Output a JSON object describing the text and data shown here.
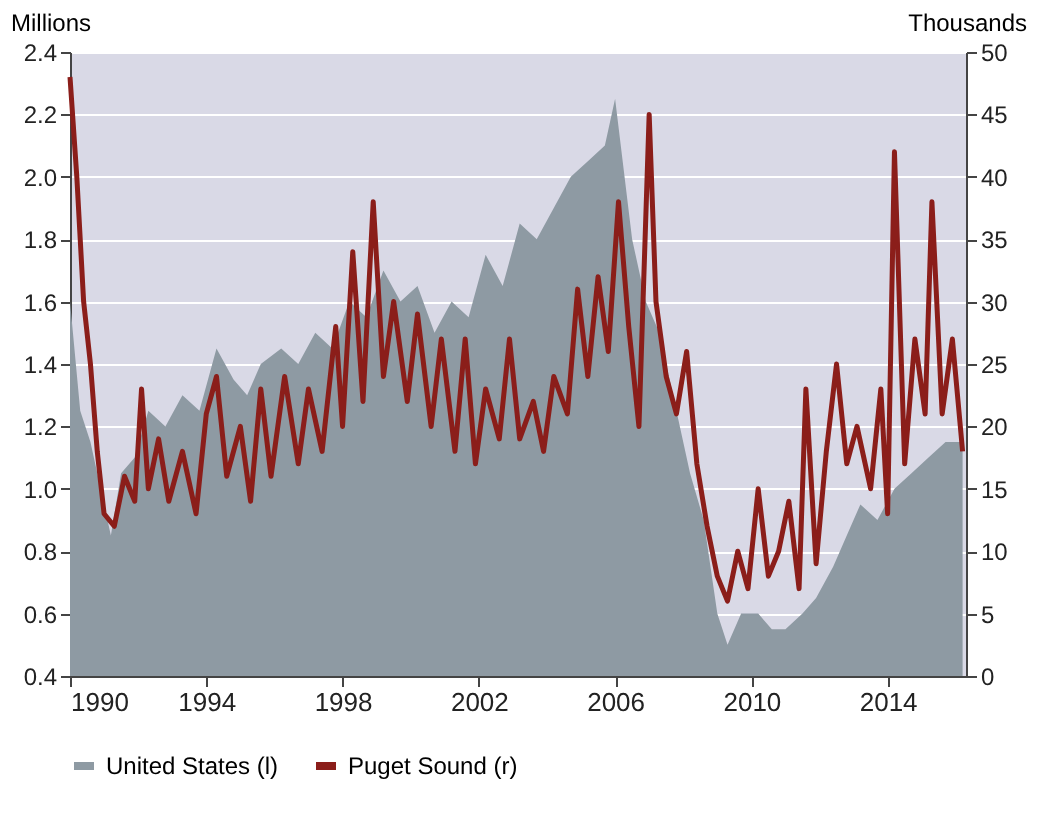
{
  "chart_data": {
    "type": "area",
    "ylabel": "Millions",
    "y2label": "Thousands",
    "xlim": [
      1990,
      2016.3
    ],
    "xticks": [
      1990,
      1994,
      1998,
      2002,
      2006,
      2010,
      2014
    ],
    "ylim": [
      0.4,
      2.4
    ],
    "yticks": [
      0.4,
      0.6,
      0.8,
      {
        "value": 1,
        "label": "1.0"
      },
      1.2,
      1.4,
      1.6,
      1.8,
      {
        "value": 2,
        "label": "2.0"
      },
      2.2,
      2.4
    ],
    "y2lim": [
      0,
      50
    ],
    "y2ticks": [
      0,
      5,
      10,
      15,
      20,
      25,
      30,
      35,
      40,
      45,
      50
    ],
    "grid": "y",
    "legend": "bottom",
    "series": [
      {
        "name": "United States (l)",
        "color": "#8e9aa3",
        "x": [
          1990.0,
          1990.3,
          1990.6,
          1990.9,
          1991.2,
          1991.5,
          1991.9,
          1992.3,
          1992.8,
          1993.3,
          1993.8,
          1994.3,
          1994.8,
          1995.2,
          1995.6,
          1996.2,
          1996.7,
          1997.2,
          1997.7,
          1998.2,
          1998.7,
          1999.2,
          1999.7,
          2000.2,
          2000.7,
          2001.2,
          2001.7,
          2002.2,
          2002.7,
          2003.2,
          2003.7,
          2004.2,
          2004.7,
          2005.2,
          2005.7,
          2006.0,
          2006.5,
          2006.9,
          2007.3,
          2007.7,
          2008.2,
          2008.6,
          2009.0,
          2009.3,
          2009.7,
          2010.2,
          2010.6,
          2011.0,
          2011.5,
          2011.9,
          2012.4,
          2012.8,
          2013.2,
          2013.7,
          2014.2,
          2014.7,
          2015.2,
          2015.7,
          2016.2
        ],
        "values": [
          1.6,
          1.25,
          1.15,
          1.0,
          0.85,
          1.05,
          1.1,
          1.25,
          1.2,
          1.3,
          1.25,
          1.45,
          1.35,
          1.3,
          1.4,
          1.45,
          1.4,
          1.5,
          1.45,
          1.6,
          1.55,
          1.7,
          1.6,
          1.65,
          1.5,
          1.6,
          1.55,
          1.75,
          1.65,
          1.85,
          1.8,
          1.9,
          2.0,
          2.05,
          2.1,
          2.25,
          1.8,
          1.6,
          1.5,
          1.3,
          1.05,
          0.9,
          0.6,
          0.5,
          0.6,
          0.6,
          0.55,
          0.55,
          0.6,
          0.65,
          0.75,
          0.85,
          0.95,
          0.9,
          1.0,
          1.05,
          1.1,
          1.15,
          1.15
        ]
      },
      {
        "name": "Puget Sound (r)",
        "type": "line",
        "axis": "y2",
        "color": "#8b1e1a",
        "x": [
          1990.0,
          1990.2,
          1990.4,
          1990.6,
          1990.8,
          1991.0,
          1991.3,
          1991.6,
          1991.9,
          1992.1,
          1992.3,
          1992.6,
          1992.9,
          1993.3,
          1993.7,
          1994.0,
          1994.3,
          1994.6,
          1995.0,
          1995.3,
          1995.6,
          1995.9,
          1996.3,
          1996.7,
          1997.0,
          1997.4,
          1997.8,
          1998.0,
          1998.3,
          1998.6,
          1998.9,
          1999.2,
          1999.5,
          1999.9,
          2000.2,
          2000.6,
          2000.9,
          2001.3,
          2001.6,
          2001.9,
          2002.2,
          2002.6,
          2002.9,
          2003.2,
          2003.6,
          2003.9,
          2004.2,
          2004.6,
          2004.9,
          2005.2,
          2005.5,
          2005.8,
          2006.1,
          2006.4,
          2006.7,
          2007.0,
          2007.2,
          2007.5,
          2007.8,
          2008.1,
          2008.4,
          2008.7,
          2009.0,
          2009.3,
          2009.6,
          2009.9,
          2010.2,
          2010.5,
          2010.8,
          2011.1,
          2011.4,
          2011.6,
          2011.9,
          2012.2,
          2012.5,
          2012.8,
          2013.1,
          2013.5,
          2013.8,
          2014.0,
          2014.2,
          2014.5,
          2014.8,
          2015.1,
          2015.3,
          2015.6,
          2015.9,
          2016.2
        ],
        "values": [
          48,
          40,
          30,
          25,
          18,
          13,
          12,
          16,
          14,
          23,
          15,
          19,
          14,
          18,
          13,
          21,
          24,
          16,
          20,
          14,
          23,
          16,
          24,
          17,
          23,
          18,
          28,
          20,
          34,
          22,
          38,
          24,
          30,
          22,
          29,
          20,
          27,
          18,
          27,
          17,
          23,
          19,
          27,
          19,
          22,
          18,
          24,
          21,
          31,
          24,
          32,
          26,
          38,
          28,
          20,
          45,
          30,
          24,
          21,
          26,
          17,
          12,
          8,
          6,
          10,
          7,
          15,
          8,
          10,
          14,
          7,
          23,
          9,
          18,
          25,
          17,
          20,
          15,
          23,
          13,
          42,
          17,
          27,
          21,
          38,
          21,
          27,
          18
        ]
      }
    ]
  }
}
